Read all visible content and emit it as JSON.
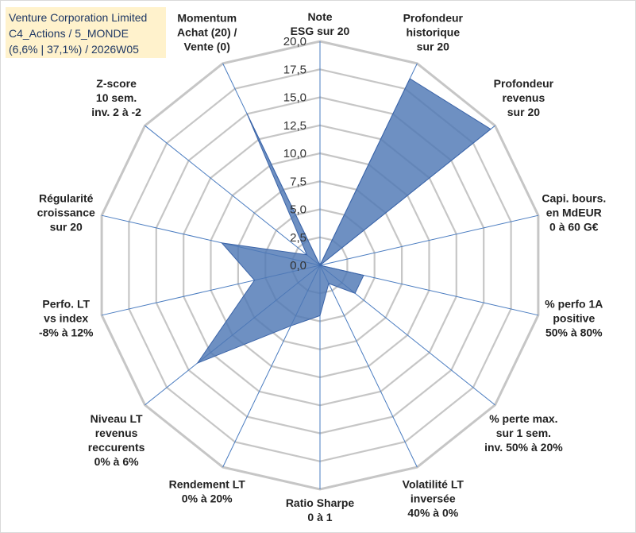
{
  "header": {
    "company": "Venture Corporation Limited",
    "portfolio": "C4_Actions / 5_MONDE",
    "stats": "(6,6% | 37,1%) / 2026W05"
  },
  "chart_data": {
    "type": "radar",
    "title": "Venture Corporation Limited",
    "rlim": [
      0,
      20
    ],
    "ticks": [
      "0,0",
      "2,5",
      "5,0",
      "7,5",
      "10,0",
      "12,5",
      "15,0",
      "17,5",
      "20,0"
    ],
    "axes": [
      {
        "label": [
          "Note",
          "ESG sur 20"
        ],
        "value": 0
      },
      {
        "label": [
          "Profondeur",
          "historique",
          "sur 20"
        ],
        "value": 18.5
      },
      {
        "label": [
          "Profondeur",
          "revenus",
          "sur 20"
        ],
        "value": 19.5
      },
      {
        "label": [
          "Capi. bours.",
          "en MdEUR",
          "0 à 60 G€"
        ],
        "value": 0
      },
      {
        "label": [
          "% perfo 1A",
          "positive",
          "50% à 80%"
        ],
        "value": 4
      },
      {
        "label": [
          "% perte max.",
          "sur 1 sem.",
          "inv. 50% à 20%"
        ],
        "value": 4
      },
      {
        "label": [
          "Volatilité LT",
          "inversée",
          "40% à 0%"
        ],
        "value": 1.8
      },
      {
        "label": [
          "Ratio Sharpe",
          "0 à 1"
        ],
        "value": 4.5
      },
      {
        "label": [
          "Rendement LT",
          "0% à 20%"
        ],
        "value": 6
      },
      {
        "label": [
          "Niveau LT",
          "revenus",
          "reccurents",
          "0% à 6%"
        ],
        "value": 14
      },
      {
        "label": [
          "Perfo. LT",
          "vs index",
          "-8% à 12%"
        ],
        "value": 6
      },
      {
        "label": [
          "Régularité",
          "croissance",
          "sur 20"
        ],
        "value": 9
      },
      {
        "label": [
          "Z-score",
          "10 sem.",
          "inv. 2 à -2"
        ],
        "value": 1.5
      },
      {
        "label": [
          "Momentum",
          "Achat (20) /",
          "Vente (0)"
        ],
        "value": 15
      }
    ],
    "series": [
      {
        "name": "Venture Corporation Limited",
        "color": "#5b83c0"
      }
    ],
    "grid": true,
    "colors": {
      "grid": "#c6c6c6",
      "spoke": "#4a7cc0",
      "fill": "#4e77b5",
      "stroke": "#3b64a8",
      "text": "#222222"
    }
  }
}
